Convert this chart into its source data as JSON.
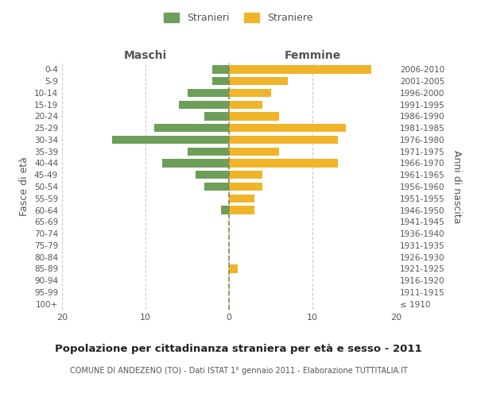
{
  "age_groups": [
    "100+",
    "95-99",
    "90-94",
    "85-89",
    "80-84",
    "75-79",
    "70-74",
    "65-69",
    "60-64",
    "55-59",
    "50-54",
    "45-49",
    "40-44",
    "35-39",
    "30-34",
    "25-29",
    "20-24",
    "15-19",
    "10-14",
    "5-9",
    "0-4"
  ],
  "birth_years": [
    "≤ 1910",
    "1911-1915",
    "1916-1920",
    "1921-1925",
    "1926-1930",
    "1931-1935",
    "1936-1940",
    "1941-1945",
    "1946-1950",
    "1951-1955",
    "1956-1960",
    "1961-1965",
    "1966-1970",
    "1971-1975",
    "1976-1980",
    "1981-1985",
    "1986-1990",
    "1991-1995",
    "1996-2000",
    "2001-2005",
    "2006-2010"
  ],
  "males": [
    0,
    0,
    0,
    0,
    0,
    0,
    0,
    0,
    1,
    0,
    3,
    4,
    8,
    5,
    14,
    9,
    3,
    6,
    5,
    2,
    2
  ],
  "females": [
    0,
    0,
    0,
    1,
    0,
    0,
    0,
    0,
    3,
    3,
    4,
    4,
    13,
    6,
    13,
    14,
    6,
    4,
    5,
    7,
    17
  ],
  "male_color": "#6d9e5a",
  "female_color": "#f0b429",
  "male_label": "Stranieri",
  "female_label": "Straniere",
  "title": "Popolazione per cittadinanza straniera per età e sesso - 2011",
  "subtitle": "COMUNE DI ANDEZENO (TO) - Dati ISTAT 1° gennaio 2011 - Elaborazione TUTTITALIA.IT",
  "xlabel_left": "Maschi",
  "xlabel_right": "Femmine",
  "ylabel_left": "Fasce di età",
  "ylabel_right": "Anni di nascita",
  "xlim": 20,
  "bg_color": "#ffffff",
  "grid_color": "#cccccc",
  "text_color": "#555555",
  "dashed_line_color": "#888855"
}
